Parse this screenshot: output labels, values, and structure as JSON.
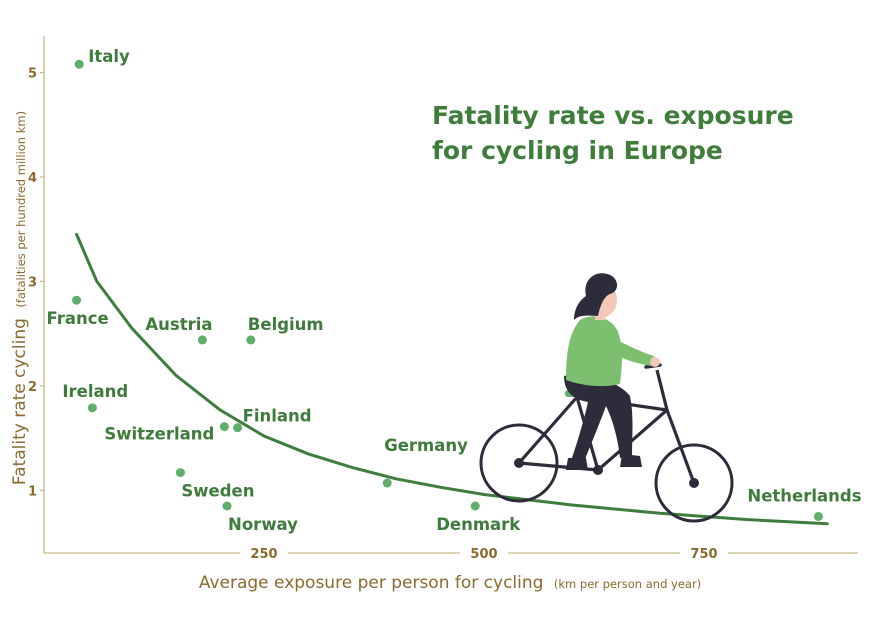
{
  "chart_data": {
    "type": "scatter",
    "title_lines": [
      "Fatality rate vs. exposure",
      "for cycling in Europe"
    ],
    "xlabel": "Average exposure per person for cycling",
    "xlabel_unit": "(km per person and year)",
    "ylabel": "Fatality rate cycling",
    "ylabel_unit": "(fatalities per hundred million km)",
    "xlim": [
      0,
      925
    ],
    "ylim": [
      0.4,
      5.35
    ],
    "xticks": [
      250,
      500,
      750
    ],
    "yticks": [
      1,
      2,
      3,
      4,
      5
    ],
    "points": [
      {
        "label": "Italy",
        "x": 40,
        "y": 5.08
      },
      {
        "label": "France",
        "x": 37,
        "y": 2.82
      },
      {
        "label": "Ireland",
        "x": 55,
        "y": 1.79
      },
      {
        "label": "Austria",
        "x": 180,
        "y": 2.44
      },
      {
        "label": "Belgium",
        "x": 235,
        "y": 2.44
      },
      {
        "label": "Switzerland",
        "x": 205,
        "y": 1.61
      },
      {
        "label": "Finland",
        "x": 220,
        "y": 1.6
      },
      {
        "label": "Sweden",
        "x": 155,
        "y": 1.17
      },
      {
        "label": "Norway",
        "x": 208,
        "y": 0.85
      },
      {
        "label": "Germany",
        "x": 390,
        "y": 1.07
      },
      {
        "label": "Denmark",
        "x": 490,
        "y": 0.85
      },
      {
        "label": "Netherlands",
        "x": 880,
        "y": 0.75
      }
    ],
    "trendline": [
      {
        "x": 37,
        "y": 3.45
      },
      {
        "x": 60,
        "y": 3.0
      },
      {
        "x": 100,
        "y": 2.55
      },
      {
        "x": 150,
        "y": 2.1
      },
      {
        "x": 200,
        "y": 1.77
      },
      {
        "x": 250,
        "y": 1.52
      },
      {
        "x": 300,
        "y": 1.35
      },
      {
        "x": 350,
        "y": 1.22
      },
      {
        "x": 400,
        "y": 1.11
      },
      {
        "x": 450,
        "y": 1.03
      },
      {
        "x": 500,
        "y": 0.96
      },
      {
        "x": 600,
        "y": 0.86
      },
      {
        "x": 700,
        "y": 0.78
      },
      {
        "x": 800,
        "y": 0.72
      },
      {
        "x": 890,
        "y": 0.68
      }
    ],
    "colors": {
      "title": "#3e7d3a",
      "labels": "#3f7c3c",
      "points": "#5fae6b",
      "trend": "#3f7d3d",
      "axis": "#c8b989",
      "axis_text": "#8a6a2e"
    },
    "grid": false,
    "decoration": "woman riding bicycle illustration"
  }
}
